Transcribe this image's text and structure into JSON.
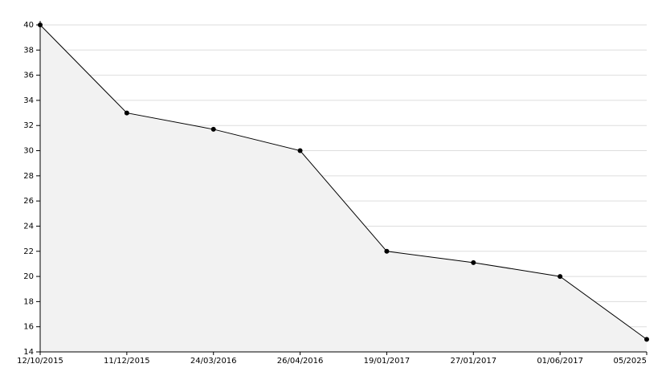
{
  "chart_data": {
    "type": "area",
    "categories": [
      "12/10/2015",
      "11/12/2015",
      "24/03/2016",
      "26/04/2016",
      "19/01/2017",
      "27/01/2017",
      "01/06/2017",
      "05/2025"
    ],
    "values": [
      40,
      33,
      31.7,
      30,
      22,
      21.1,
      20,
      15
    ],
    "color": "#000000",
    "fill": "#f2f2f2",
    "ylim": [
      14,
      40
    ],
    "yticks": [
      14,
      16,
      18,
      20,
      22,
      24,
      26,
      28,
      30,
      32,
      34,
      36,
      38,
      40
    ],
    "grid": true
  }
}
